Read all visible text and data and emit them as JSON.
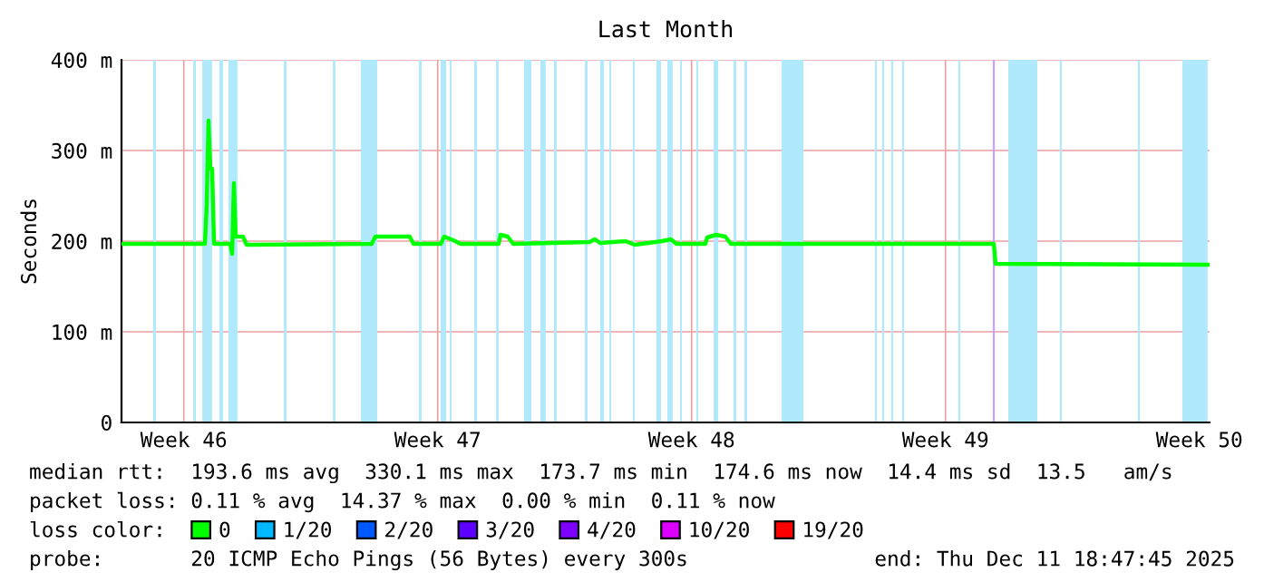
{
  "chart_data": {
    "type": "line",
    "title": "Last Month",
    "ylabel": "Seconds",
    "x": [
      "2025-11-11T18:47",
      "2025-11-14T02:00",
      "2025-11-14T03:10",
      "2025-11-14T04:20",
      "2025-11-14T05:35",
      "2025-11-14T06:45",
      "2025-11-14T08:00",
      "2025-11-14T18:45",
      "2025-11-14T20:00",
      "2025-11-14T21:10",
      "2025-11-14T22:20",
      "2025-11-15T03:10",
      "2025-11-15T05:35",
      "2025-11-18T16:20",
      "2025-11-18T18:45",
      "2025-11-19T17:30",
      "2025-11-19T20:00",
      "2025-11-20T14:00",
      "2025-11-20T16:20",
      "2025-11-20T22:20",
      "2025-11-21T03:10",
      "2025-11-22T04:20",
      "2025-11-22T05:35",
      "2025-11-22T10:20",
      "2025-11-22T14:00",
      "2025-11-24T16:20",
      "2025-11-24T20:00",
      "2025-11-24T23:30",
      "2025-11-25T16:20",
      "2025-11-25T22:20",
      "2025-11-26T16:20",
      "2025-11-26T22:20",
      "2025-11-27T02:00",
      "2025-11-27T21:10",
      "2025-11-27T22:20",
      "2025-11-28T04:20",
      "2025-11-28T10:20",
      "2025-11-28T14:00",
      "2025-12-05T20:00",
      "2025-12-05T21:10",
      "2025-12-11T18:47"
    ],
    "series": [
      {
        "name": "0",
        "color": "#00ff00",
        "values": [
          197,
          197,
          240,
          333,
          280,
          280,
          197,
          197,
          186,
          264,
          205,
          205,
          196,
          197,
          205,
          205,
          197,
          197,
          205,
          201,
          197,
          197,
          207,
          205,
          197,
          199,
          202,
          198,
          200,
          196,
          200,
          202,
          197,
          197,
          204,
          207,
          205,
          197,
          197,
          175,
          174
        ]
      },
      {
        "name": "1/20",
        "color": "#00b8ff",
        "values": [
          null,
          null,
          null,
          null,
          null,
          null,
          null,
          null,
          null,
          null,
          null,
          null,
          null,
          null,
          null,
          null,
          null,
          null,
          null,
          null,
          null,
          null,
          null,
          null,
          null,
          null,
          null,
          null,
          null,
          null,
          null,
          null,
          null,
          null,
          null,
          null,
          null,
          null,
          null,
          null,
          null
        ]
      },
      {
        "name": "2/20",
        "color": "#0059ff",
        "values": [
          null,
          null,
          null,
          null,
          null,
          null,
          null,
          null,
          null,
          null,
          null,
          null,
          null,
          null,
          null,
          null,
          null,
          null,
          null,
          null,
          null,
          null,
          null,
          null,
          null,
          null,
          null,
          null,
          null,
          null,
          null,
          null,
          null,
          null,
          null,
          null,
          null,
          null,
          null,
          null,
          null
        ]
      },
      {
        "name": "3/20",
        "color": "#5e00ff",
        "values": [
          null,
          null,
          null,
          null,
          null,
          null,
          null,
          null,
          null,
          null,
          null,
          null,
          null,
          null,
          null,
          null,
          null,
          null,
          null,
          null,
          null,
          null,
          null,
          null,
          null,
          null,
          null,
          null,
          null,
          null,
          null,
          null,
          null,
          null,
          null,
          null,
          null,
          null,
          null,
          null,
          null
        ]
      },
      {
        "name": "4/20",
        "color": "#7e00ff",
        "values": [
          null,
          null,
          null,
          null,
          null,
          null,
          null,
          null,
          null,
          null,
          null,
          null,
          null,
          null,
          null,
          null,
          null,
          null,
          null,
          null,
          null,
          null,
          null,
          null,
          null,
          null,
          null,
          null,
          null,
          null,
          null,
          null,
          null,
          null,
          null,
          null,
          null,
          null,
          null,
          null,
          null
        ]
      },
      {
        "name": "10/20",
        "color": "#dd00ff",
        "values": [
          null,
          null,
          null,
          null,
          null,
          null,
          null,
          null,
          null,
          null,
          null,
          null,
          null,
          null,
          null,
          null,
          null,
          null,
          null,
          null,
          null,
          null,
          null,
          null,
          null,
          null,
          null,
          null,
          null,
          null,
          null,
          null,
          null,
          null,
          null,
          null,
          null,
          null,
          null,
          null,
          null
        ]
      },
      {
        "name": "19/20",
        "color": "#ff0000",
        "values": [
          null,
          null,
          null,
          null,
          null,
          null,
          null,
          null,
          null,
          null,
          null,
          null,
          null,
          null,
          null,
          null,
          null,
          null,
          null,
          null,
          null,
          null,
          null,
          null,
          null,
          null,
          null,
          null,
          null,
          null,
          null,
          null,
          null,
          null,
          null,
          null,
          null,
          null,
          null,
          null,
          null
        ]
      }
    ],
    "legend_title": "loss color:",
    "legend": "bottom",
    "xlim": [
      "2025-11-11T18:47",
      "2025-12-11T18:47"
    ],
    "xticks": [
      {
        "value": "2025-11-13T12:00",
        "label": "Week 46"
      },
      {
        "value": "2025-11-20T12:00",
        "label": "Week 47"
      },
      {
        "value": "2025-11-27T12:00",
        "label": "Week 48"
      },
      {
        "value": "2025-12-04T12:00",
        "label": "Week 49"
      },
      {
        "value": "2025-12-11T12:00",
        "label": "Week 50"
      }
    ],
    "ylim": [
      0,
      400
    ],
    "yticks": [
      0,
      {
        "value": 100,
        "label": "100 m"
      },
      {
        "value": 200,
        "label": "200 m"
      },
      {
        "value": 300,
        "label": "300 m"
      },
      {
        "value": 400,
        "label": "400 m"
      }
    ],
    "grid": true,
    "marker": "none",
    "line_style": "solid",
    "bands": [
      {
        "axis": "x",
        "from": "2025-11-12T15:45",
        "to": "2025-11-12T17:35",
        "label": null,
        "color": "#b0e8fc"
      },
      {
        "axis": "x",
        "from": "2025-11-13T18:15",
        "to": "2025-11-13T20:00",
        "label": null,
        "color": "#b0e8fc"
      },
      {
        "axis": "x",
        "from": "2025-11-14T00:15",
        "to": "2025-11-14T06:45",
        "label": null,
        "color": "#b0e8fc"
      },
      {
        "axis": "x",
        "from": "2025-11-14T11:30",
        "to": "2025-11-14T14:00",
        "label": null,
        "color": "#b0e8fc"
      },
      {
        "axis": "x",
        "from": "2025-11-14T17:30",
        "to": "2025-11-14T23:30",
        "label": null,
        "color": "#b0e8fc"
      },
      {
        "axis": "x",
        "from": "2025-11-16T06:15",
        "to": "2025-11-16T08:00",
        "label": null,
        "color": "#b0e8fc"
      },
      {
        "axis": "x",
        "from": "2025-11-17T14:40",
        "to": "2025-11-17T16:20",
        "label": null,
        "color": "#b0e8fc"
      },
      {
        "axis": "x",
        "from": "2025-11-18T09:10",
        "to": "2025-11-18T20:00",
        "label": null,
        "color": "#b0e8fc"
      },
      {
        "axis": "x",
        "from": "2025-11-19T23:30",
        "to": "2025-11-20T01:25",
        "label": null,
        "color": "#b0e8fc"
      },
      {
        "axis": "x",
        "from": "2025-11-20T14:00",
        "to": "2025-11-20T17:35",
        "label": null,
        "color": "#b0e8fc"
      },
      {
        "axis": "x",
        "from": "2025-11-20T20:00",
        "to": "2025-11-20T21:10",
        "label": null,
        "color": "#b0e8fc"
      },
      {
        "axis": "x",
        "from": "2025-11-21T12:15",
        "to": "2025-11-21T14:00",
        "label": null,
        "color": "#b0e8fc"
      },
      {
        "axis": "x",
        "from": "2025-11-22T02:40",
        "to": "2025-11-22T04:20",
        "label": null,
        "color": "#b0e8fc"
      },
      {
        "axis": "x",
        "from": "2025-11-22T21:10",
        "to": "2025-11-23T02:00",
        "label": null,
        "color": "#b0e8fc"
      },
      {
        "axis": "x",
        "from": "2025-11-23T08:00",
        "to": "2025-11-23T11:30",
        "label": null,
        "color": "#b0e8fc"
      },
      {
        "axis": "x",
        "from": "2025-11-23T17:00",
        "to": "2025-11-23T18:45",
        "label": null,
        "color": "#b0e8fc"
      },
      {
        "axis": "x",
        "from": "2025-11-24T13:25",
        "to": "2025-11-24T15:10",
        "label": null,
        "color": "#b0e8fc"
      },
      {
        "axis": "x",
        "from": "2025-11-24T23:30",
        "to": "2025-11-25T02:00",
        "label": null,
        "color": "#b0e8fc"
      },
      {
        "axis": "x",
        "from": "2025-11-25T05:35",
        "to": "2025-11-25T06:45",
        "label": null,
        "color": "#b0e8fc"
      },
      {
        "axis": "x",
        "from": "2025-11-25T21:10",
        "to": "2025-11-25T22:20",
        "label": null,
        "color": "#b0e8fc"
      },
      {
        "axis": "x",
        "from": "2025-11-26T12:45",
        "to": "2025-11-26T15:45",
        "label": null,
        "color": "#b0e8fc"
      },
      {
        "axis": "x",
        "from": "2025-11-26T20:00",
        "to": "2025-11-26T23:30",
        "label": null,
        "color": "#b0e8fc"
      },
      {
        "axis": "x",
        "from": "2025-11-27T04:20",
        "to": "2025-11-27T05:35",
        "label": null,
        "color": "#b0e8fc"
      },
      {
        "axis": "x",
        "from": "2025-11-27T15:10",
        "to": "2025-11-27T16:20",
        "label": null,
        "color": "#b0e8fc"
      },
      {
        "axis": "x",
        "from": "2025-11-28T02:40",
        "to": "2025-11-28T05:35",
        "label": null,
        "color": "#b0e8fc"
      },
      {
        "axis": "x",
        "from": "2025-11-28T15:50",
        "to": "2025-11-28T17:35",
        "label": null,
        "color": "#b0e8fc"
      },
      {
        "axis": "x",
        "from": "2025-11-28T23:00",
        "to": "2025-11-29T00:45",
        "label": null,
        "color": "#b0e8fc"
      },
      {
        "axis": "x",
        "from": "2025-11-29T23:30",
        "to": "2025-11-30T14:00",
        "label": null,
        "color": "#b0e8fc"
      },
      {
        "axis": "x",
        "from": "2025-12-02T13:20",
        "to": "2025-12-02T14:40",
        "label": null,
        "color": "#b0e8fc"
      },
      {
        "axis": "x",
        "from": "2025-12-02T18:05",
        "to": "2025-12-02T19:25",
        "label": null,
        "color": "#b0e8fc"
      },
      {
        "axis": "x",
        "from": "2025-12-03T00:05",
        "to": "2025-12-03T01:25",
        "label": null,
        "color": "#b0e8fc"
      },
      {
        "axis": "x",
        "from": "2025-12-03T07:20",
        "to": "2025-12-03T08:40",
        "label": null,
        "color": "#b0e8fc"
      },
      {
        "axis": "x",
        "from": "2025-12-04T20:30",
        "to": "2025-12-04T21:50",
        "label": null,
        "color": "#b0e8fc"
      },
      {
        "axis": "x",
        "from": "2025-12-05T19:20",
        "to": "2025-12-05T20:40",
        "label": null,
        "color": "#c8a0ff"
      },
      {
        "axis": "x",
        "from": "2025-12-06T05:35",
        "to": "2025-12-07T00:45",
        "label": null,
        "color": "#b0e8fc"
      },
      {
        "axis": "x",
        "from": "2025-12-07T15:40",
        "to": "2025-12-07T17:00",
        "label": null,
        "color": "#b0e8fc"
      },
      {
        "axis": "x",
        "from": "2025-12-09T19:20",
        "to": "2025-12-09T20:40",
        "label": null,
        "color": "#b0e8fc"
      },
      {
        "axis": "x",
        "from": "2025-12-11T00:45",
        "to": "2025-12-11T17:30",
        "label": null,
        "color": "#b0e8fc"
      }
    ],
    "annotations": [
      "median rtt:  193.6 ms avg  330.1 ms max  173.7 ms min  174.6 ms now  14.4 ms sd  13.5   am/s",
      "packet loss: 0.11 % avg  14.37 % max  0.00 % min  0.11 % now",
      "probe:       20 ICMP Echo Pings (56 Bytes) every 300s",
      "end: Thu Dec 11 18:47:45 2025"
    ]
  }
}
